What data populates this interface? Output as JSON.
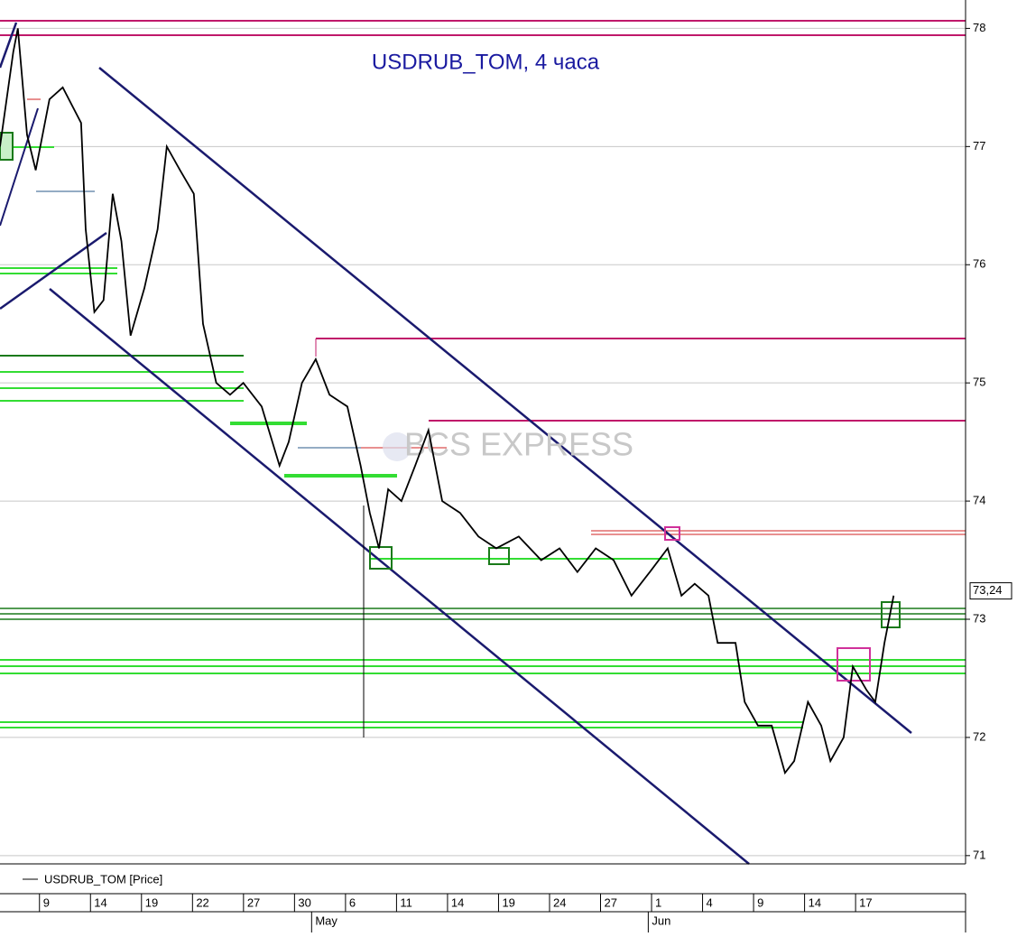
{
  "chart_data": {
    "type": "line",
    "title": "USDRUB_TOM, 4 часа",
    "watermark": "BCS EXPRESS",
    "x": [
      -0.88,
      -0.62,
      -0.53,
      -0.35,
      -0.18,
      0.09,
      0.35,
      0.71,
      0.8,
      0.97,
      1.15,
      1.33,
      1.5,
      1.68,
      1.95,
      2.21,
      2.39,
      2.65,
      2.92,
      3.1,
      3.36,
      3.63,
      3.89,
      4.25,
      4.6,
      4.78,
      5.04,
      5.31,
      5.58,
      5.93,
      6.19,
      6.37,
      6.55,
      6.73,
      6.99,
      7.26,
      7.52,
      7.79,
      8.14,
      8.5,
      8.85,
      9.29,
      9.73,
      10.09,
      10.44,
      10.8,
      11.15,
      11.5,
      11.86,
      12.21,
      12.48,
      12.74,
      13.01,
      13.19,
      13.54,
      13.72,
      13.98,
      14.25,
      14.51,
      14.69,
      14.96,
      15.22,
      15.4,
      15.66,
      15.84,
      16.11,
      16.28,
      16.46,
      16.64
    ],
    "series": [
      {
        "name": "USDRUB_TOM [Price]",
        "color": "#000000",
        "values": [
          77.0,
          77.8,
          78.0,
          77.1,
          76.8,
          77.4,
          77.5,
          77.2,
          76.3,
          75.6,
          75.7,
          76.6,
          76.2,
          75.4,
          75.8,
          76.3,
          77.0,
          76.8,
          76.6,
          75.5,
          75.0,
          74.9,
          75.0,
          74.8,
          74.3,
          74.5,
          75.0,
          75.2,
          74.9,
          74.8,
          74.3,
          73.9,
          73.6,
          74.1,
          74.0,
          74.3,
          74.6,
          74.0,
          73.9,
          73.7,
          73.6,
          73.7,
          73.5,
          73.6,
          73.4,
          73.6,
          73.5,
          73.2,
          73.4,
          73.6,
          73.2,
          73.3,
          73.2,
          72.8,
          72.8,
          72.3,
          72.1,
          72.1,
          71.7,
          71.8,
          72.3,
          72.1,
          71.8,
          72.0,
          72.6,
          72.4,
          72.3,
          72.8,
          73.2
        ]
      }
    ],
    "current_price": {
      "value": 73.24,
      "label": "73,24"
    },
    "xlim": [
      -0.88,
      18.05
    ],
    "xticks": [
      {
        "value": 0,
        "label": "9"
      },
      {
        "value": 1,
        "label": "14"
      },
      {
        "value": 2,
        "label": "19"
      },
      {
        "value": 3,
        "label": "22"
      },
      {
        "value": 4,
        "label": "27"
      },
      {
        "value": 5,
        "label": "30"
      },
      {
        "value": 6,
        "label": "6"
      },
      {
        "value": 7,
        "label": "11"
      },
      {
        "value": 8,
        "label": "14"
      },
      {
        "value": 9,
        "label": "19"
      },
      {
        "value": 10,
        "label": "24"
      },
      {
        "value": 11,
        "label": "27"
      },
      {
        "value": 12,
        "label": "1"
      },
      {
        "value": 13,
        "label": "4"
      },
      {
        "value": 14,
        "label": "9"
      },
      {
        "value": 15,
        "label": "14"
      },
      {
        "value": 16,
        "label": "17"
      }
    ],
    "month_ticks": [
      {
        "value": 5.3,
        "label": "May"
      },
      {
        "value": 11.9,
        "label": "Jun"
      }
    ],
    "ylim": [
      70.93,
      78.24
    ],
    "yticks": [
      71,
      72,
      73,
      74,
      75,
      76,
      77,
      78
    ],
    "grid": true
  }
}
